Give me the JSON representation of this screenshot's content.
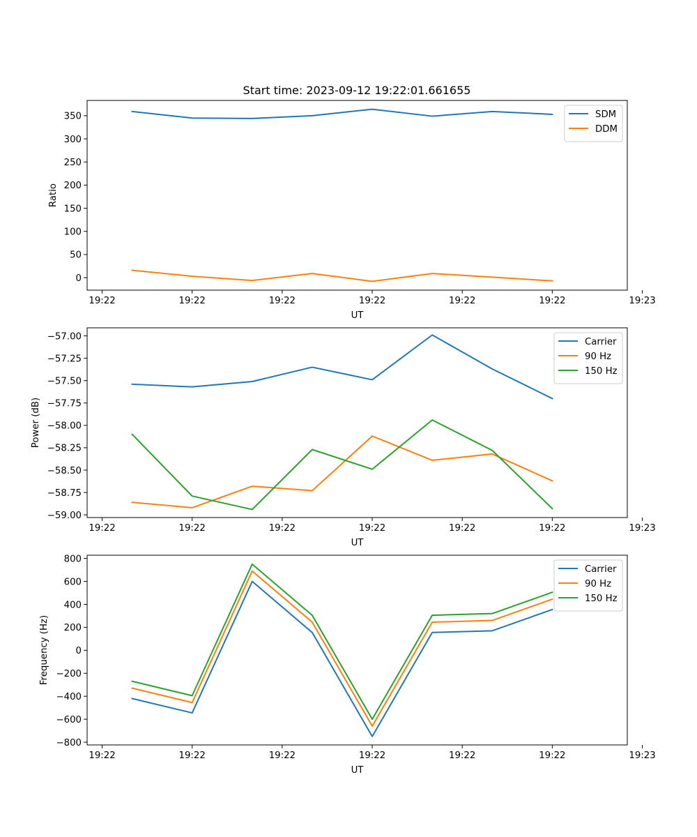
{
  "figure_title": "Start time: 2023-09-12 19:22:01.661655",
  "chart_data": [
    {
      "type": "line",
      "title": "Start time: 2023-09-12 19:22:01.661655",
      "xlabel": "UT",
      "ylabel": "Ratio",
      "x": [
        1,
        2,
        3,
        4,
        5,
        6,
        7,
        8
      ],
      "xlim": [
        0.25,
        9.25
      ],
      "xticks": [
        0.5,
        2,
        3.5,
        5,
        6.5,
        8,
        9.5
      ],
      "xtick_labels": [
        "19:22",
        "19:22",
        "19:22",
        "19:22",
        "19:22",
        "19:22",
        "19:23"
      ],
      "ylim": [
        -27,
        383
      ],
      "yticks": [
        0,
        50,
        100,
        150,
        200,
        250,
        300,
        350
      ],
      "ytick_labels": [
        "0",
        "50",
        "100",
        "150",
        "200",
        "250",
        "300",
        "350"
      ],
      "legend": "top-right",
      "series": [
        {
          "name": "SDM",
          "color": "#1f77b4",
          "values": [
            359,
            345,
            344,
            350,
            364,
            349,
            359,
            353
          ]
        },
        {
          "name": "DDM",
          "color": "#ff7f0e",
          "values": [
            16,
            3,
            -6,
            9,
            -8,
            9,
            1,
            -7
          ]
        }
      ]
    },
    {
      "type": "line",
      "title": "",
      "xlabel": "UT",
      "ylabel": "Power (dB)",
      "x": [
        1,
        2,
        3,
        4,
        5,
        6,
        7,
        8
      ],
      "xlim": [
        0.25,
        9.25
      ],
      "xticks": [
        0.5,
        2,
        3.5,
        5,
        6.5,
        8,
        9.5
      ],
      "xtick_labels": [
        "19:22",
        "19:22",
        "19:22",
        "19:22",
        "19:22",
        "19:22",
        "19:23"
      ],
      "ylim": [
        -59.03,
        -56.91
      ],
      "yticks": [
        -59.0,
        -58.75,
        -58.5,
        -58.25,
        -58.0,
        -57.75,
        -57.5,
        -57.25,
        -57.0
      ],
      "ytick_labels": [
        "−59.00",
        "−58.75",
        "−58.50",
        "−58.25",
        "−58.00",
        "−57.75",
        "−57.50",
        "−57.25",
        "−57.00"
      ],
      "legend": "top-right",
      "series": [
        {
          "name": "Carrier",
          "color": "#1f77b4",
          "values": [
            -57.54,
            -57.57,
            -57.51,
            -57.35,
            -57.49,
            -56.99,
            -57.37,
            -57.7
          ]
        },
        {
          "name": "90 Hz",
          "color": "#ff7f0e",
          "values": [
            -58.86,
            -58.92,
            -58.68,
            -58.73,
            -58.12,
            -58.39,
            -58.32,
            -58.62
          ]
        },
        {
          "name": "150 Hz",
          "color": "#2ca02c",
          "values": [
            -58.1,
            -58.79,
            -58.94,
            -58.27,
            -58.49,
            -57.94,
            -58.28,
            -58.93
          ]
        }
      ]
    },
    {
      "type": "line",
      "title": "",
      "xlabel": "UT",
      "ylabel": "Frequency (Hz)",
      "x": [
        1,
        2,
        3,
        4,
        5,
        6,
        7,
        8
      ],
      "xlim": [
        0.25,
        9.25
      ],
      "xticks": [
        0.5,
        2,
        3.5,
        5,
        6.5,
        8,
        9.5
      ],
      "xtick_labels": [
        "19:22",
        "19:22",
        "19:22",
        "19:22",
        "19:22",
        "19:22",
        "19:23"
      ],
      "ylim": [
        -824,
        828
      ],
      "yticks": [
        -800,
        -600,
        -400,
        -200,
        0,
        200,
        400,
        600,
        800
      ],
      "ytick_labels": [
        "−800",
        "−600",
        "−400",
        "−200",
        "0",
        "200",
        "400",
        "600",
        "800"
      ],
      "legend": "top-right",
      "series": [
        {
          "name": "Carrier",
          "color": "#1f77b4",
          "values": [
            -420,
            -545,
            600,
            155,
            -750,
            155,
            170,
            355
          ]
        },
        {
          "name": "90 Hz",
          "color": "#ff7f0e",
          "values": [
            -330,
            -455,
            690,
            245,
            -660,
            245,
            260,
            445
          ]
        },
        {
          "name": "150 Hz",
          "color": "#2ca02c",
          "values": [
            -270,
            -395,
            750,
            305,
            -600,
            305,
            320,
            505
          ]
        }
      ]
    }
  ]
}
